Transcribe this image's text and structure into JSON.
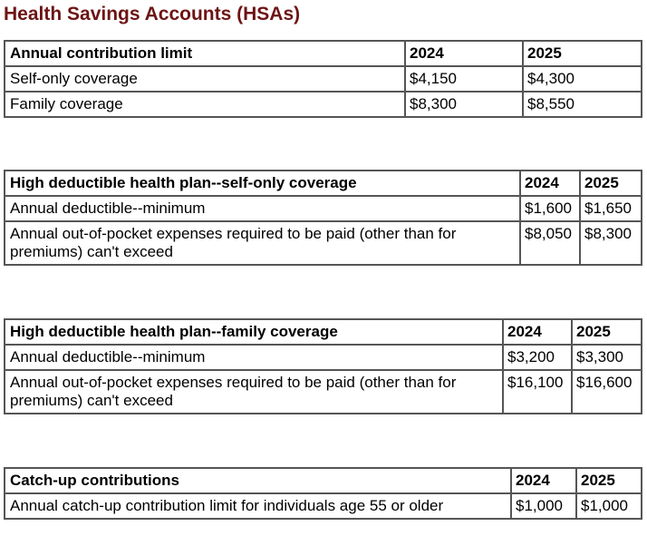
{
  "title": "Health Savings Accounts (HSAs)",
  "tables": [
    {
      "header": "Annual contribution limit",
      "years": [
        "2024",
        "2025"
      ],
      "rows": [
        {
          "label": "Self-only coverage",
          "values": [
            "$4,150",
            "$4,300"
          ]
        },
        {
          "label": "Family coverage",
          "values": [
            "$8,300",
            "$8,550"
          ]
        }
      ]
    },
    {
      "header": "High deductible health plan--self-only coverage",
      "years": [
        "2024",
        "2025"
      ],
      "rows": [
        {
          "label": "Annual deductible--minimum",
          "values": [
            "$1,600",
            "$1,650"
          ]
        },
        {
          "label": "Annual out-of-pocket expenses required to be paid (other than for premiums) can't exceed",
          "values": [
            "$8,050",
            "$8,300"
          ]
        }
      ]
    },
    {
      "header": "High deductible health plan--family coverage",
      "years": [
        "2024",
        "2025"
      ],
      "rows": [
        {
          "label": "Annual deductible--minimum",
          "values": [
            "$3,200",
            "$3,300"
          ]
        },
        {
          "label": "Annual out-of-pocket expenses required to be paid (other than for premiums) can't exceed",
          "values": [
            "$16,100",
            "$16,600"
          ]
        }
      ]
    },
    {
      "header": "Catch-up contributions",
      "years": [
        "2024",
        "2025"
      ],
      "rows": [
        {
          "label": "Annual catch-up contribution limit for individuals age 55 or older",
          "values": [
            "$1,000",
            "$1,000"
          ]
        }
      ]
    }
  ],
  "colors": {
    "title": "#6e1414",
    "border": "#555555"
  }
}
